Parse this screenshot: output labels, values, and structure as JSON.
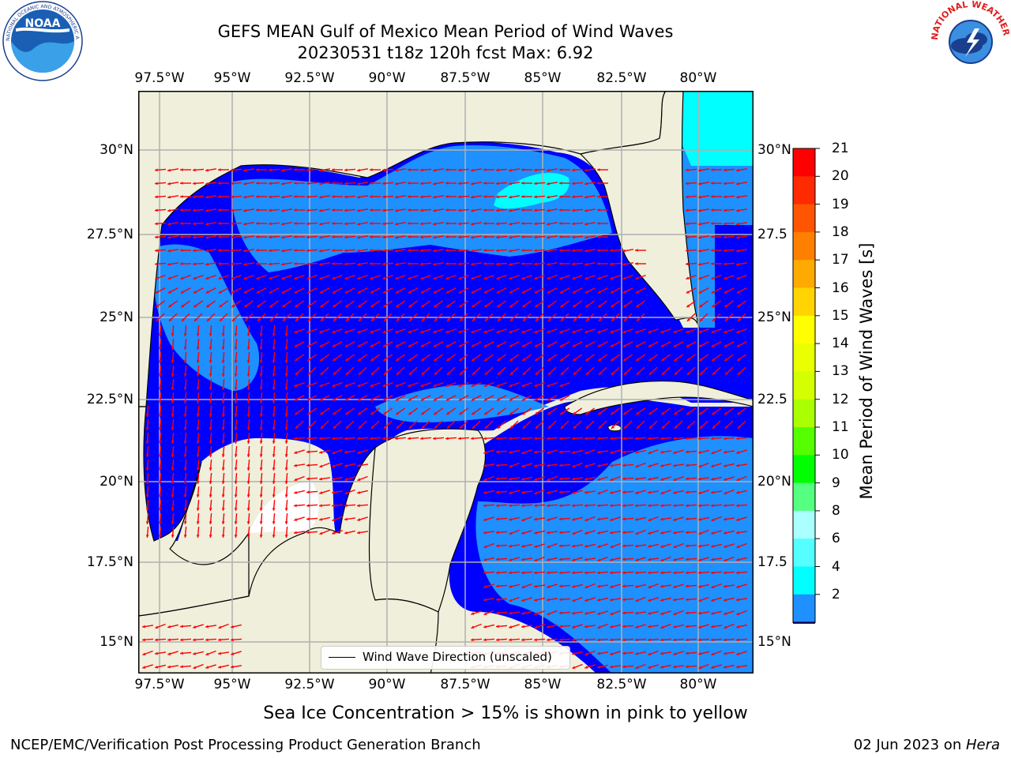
{
  "header": {
    "title_line1": "GEFS MEAN Gulf of Mexico Mean Period of Wind Waves",
    "title_line2": "20230531 t18z 120h fcst   Max: 6.92"
  },
  "map": {
    "lon_ticks": [
      "97.5°W",
      "95°W",
      "92.5°W",
      "90°W",
      "87.5°W",
      "85°W",
      "82.5°W",
      "80°W"
    ],
    "lat_ticks_left": [
      "30°N",
      "27.5°N",
      "25°N",
      "22.5°N",
      "20°N",
      "17.5°N",
      "15°N"
    ],
    "lat_ticks_right": [
      "30°N",
      "27.5",
      "25°N",
      "22.5",
      "20°N",
      "17.5",
      "15°N"
    ],
    "legend_label": "Wind Wave Direction (unscaled)",
    "colors": {
      "land": "#efefdc",
      "ocean_low": "#0000ff",
      "ocean_mid": "#1e90ff",
      "ocean_high": "#00ffff",
      "arrow": "#ff0000",
      "grid": "#b0b0b0"
    }
  },
  "colorbar": {
    "label": "Mean Period of Wind Waves [s]",
    "ticks": [
      "21",
      "20",
      "19",
      "18",
      "17",
      "16",
      "15",
      "14",
      "13",
      "12",
      "11",
      "10",
      "9",
      "8",
      "6",
      "4",
      "2"
    ],
    "colors": [
      "#ff0000",
      "#ff2a00",
      "#ff5500",
      "#ff8000",
      "#ffaa00",
      "#ffd400",
      "#ffff00",
      "#eaff00",
      "#d4ff00",
      "#aaff00",
      "#55ff00",
      "#00ff00",
      "#55ff80",
      "#aaffff",
      "#55ffff",
      "#00ffff",
      "#1e90ff",
      "#0000ff"
    ]
  },
  "chart_data": {
    "type": "heatmap",
    "title": "GEFS MEAN Gulf of Mexico Mean Period of Wind Waves",
    "subtitle": "20230531 t18z 120h fcst   Max: 6.92",
    "variable": "Mean Period of Wind Waves [s]",
    "max_value": 6.92,
    "lon_range": [
      -98,
      -78
    ],
    "lat_range": [
      14,
      31.7
    ],
    "colorbar_levels": [
      2,
      4,
      6,
      8,
      9,
      10,
      11,
      12,
      13,
      14,
      15,
      16,
      17,
      18,
      19,
      20,
      21
    ]
  },
  "notes": {
    "sea_ice": "Sea Ice Concentration > 15% is shown in pink to yellow"
  },
  "footer": {
    "left": "NCEP/EMC/Verification Post Processing Product Generation Branch",
    "right_date": "02 Jun 2023 on ",
    "right_host": "Hera"
  },
  "logos": {
    "noaa": "NOAA",
    "noaa_ring": "NATIONAL OCEANIC AND ATMOSPHERIC ADMINISTRATION · U.S. DEPARTMENT OF COMMERCE",
    "nws_ring": "NATIONAL WEATHER SERVICE"
  }
}
